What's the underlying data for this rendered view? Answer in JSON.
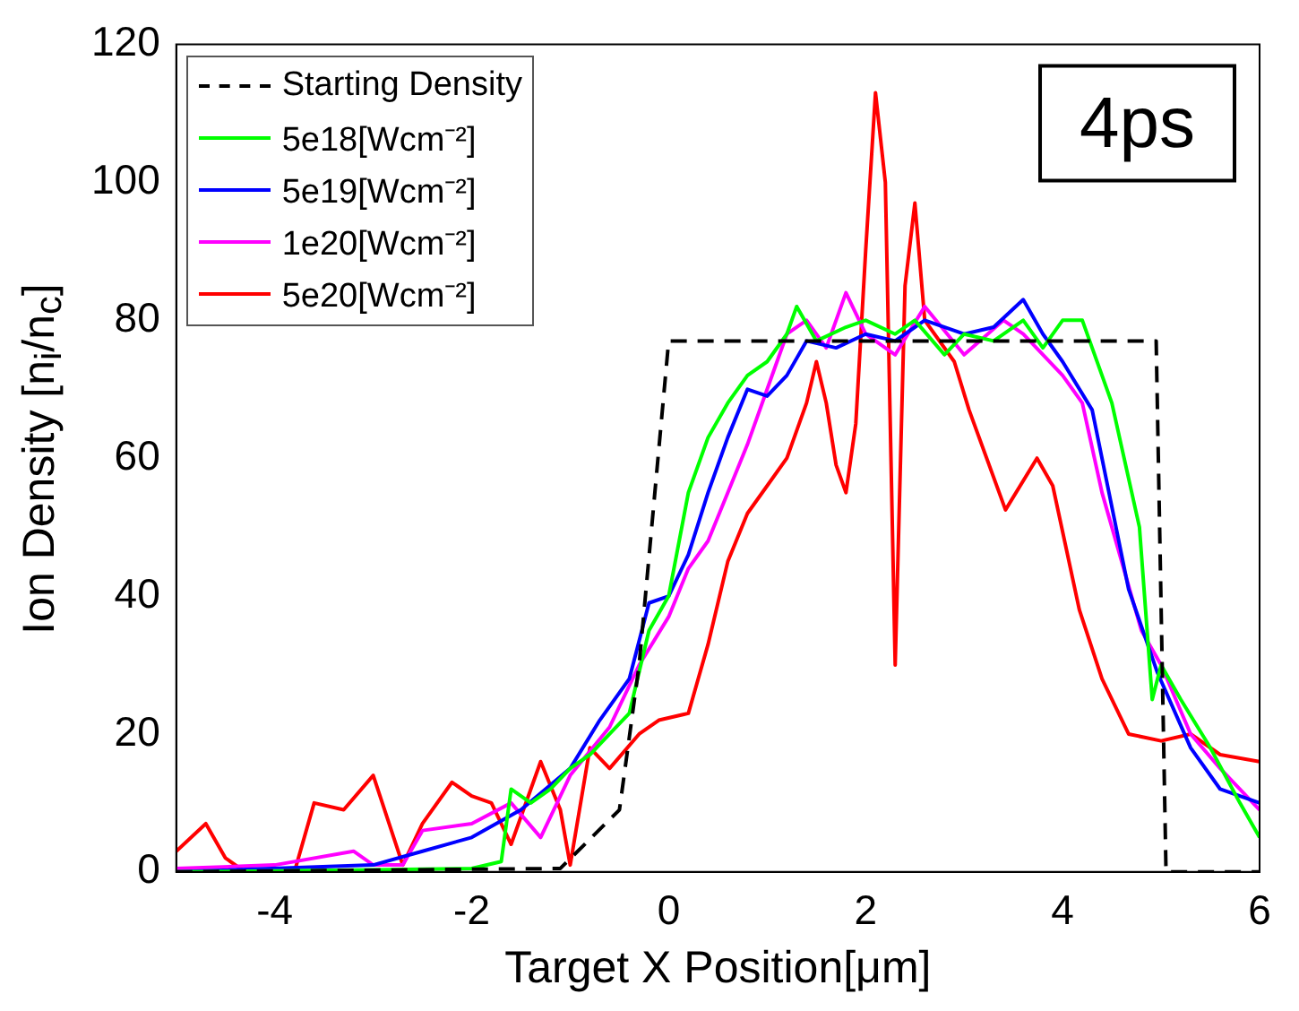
{
  "chart_data": {
    "type": "line",
    "xlabel": "Target X Position[μm]",
    "ylabel": "Ion Density [n$_{i}$/n$_{c}$]",
    "xlim": [
      -5,
      6
    ],
    "xticks": [
      -4,
      -2,
      0,
      2,
      4,
      6
    ],
    "ylim": [
      0,
      120
    ],
    "yticks": [
      0,
      20,
      40,
      60,
      80,
      100,
      120
    ],
    "legend": "top left",
    "marker": "none",
    "annotations": [
      "4ps"
    ],
    "series": [
      {
        "name": "Starting Density",
        "color": "#000000",
        "line_style": "dashed",
        "x": [
          -5,
          -1.1,
          -0.5,
          -0.3,
          0,
          4.95,
          5.05,
          6
        ],
        "values": [
          0,
          0.5,
          9,
          30,
          77,
          77,
          0,
          0
        ]
      },
      {
        "name": "5e18[Wcm⁻²]",
        "color": "#00ff00",
        "x": [
          -5,
          -3,
          -2,
          -1.7,
          -1.6,
          -1.4,
          -1.2,
          -1,
          -0.8,
          -0.6,
          -0.4,
          -0.2,
          0,
          0.2,
          0.4,
          0.6,
          0.8,
          1,
          1.2,
          1.3,
          1.5,
          1.8,
          2,
          2.3,
          2.5,
          2.8,
          3,
          3.3,
          3.6,
          3.8,
          4,
          4.2,
          4.3,
          4.5,
          4.78,
          4.91,
          5,
          5.2,
          5.5,
          5.8,
          6
        ],
        "values": [
          0,
          0.3,
          0.5,
          1.5,
          12,
          10,
          12,
          15,
          17,
          20,
          23,
          35,
          40,
          55,
          63,
          68,
          72,
          74,
          78,
          82,
          77,
          79,
          80,
          78,
          80,
          75,
          78,
          77,
          80,
          76,
          80,
          80,
          76,
          68,
          50,
          25,
          30,
          25,
          18,
          10,
          5
        ]
      },
      {
        "name": "5e19[Wcm⁻²]",
        "color": "#0000ff",
        "x": [
          -5,
          -3,
          -2.5,
          -2,
          -1.5,
          -1,
          -0.7,
          -0.4,
          -0.2,
          0,
          0.2,
          0.4,
          0.6,
          0.8,
          1,
          1.2,
          1.4,
          1.7,
          2,
          2.3,
          2.6,
          3,
          3.3,
          3.6,
          3.8,
          4,
          4.3,
          4.67,
          4.96,
          5.3,
          5.6,
          6
        ],
        "values": [
          0,
          1,
          3,
          5,
          9,
          15,
          22,
          28,
          39,
          40,
          46,
          55,
          63,
          70,
          69,
          72,
          77,
          76,
          78,
          77,
          80,
          78,
          79,
          83,
          78,
          74,
          67,
          41,
          29,
          18,
          12,
          10
        ]
      },
      {
        "name": "1e20[Wcm⁻²]",
        "color": "#ff00ff",
        "x": [
          -5,
          -4,
          -3.2,
          -3,
          -2.7,
          -2.5,
          -2,
          -1.6,
          -1.3,
          -1,
          -0.6,
          -0.3,
          0,
          0.2,
          0.4,
          0.6,
          0.8,
          1,
          1.2,
          1.4,
          1.6,
          1.8,
          2,
          2.3,
          2.6,
          3,
          3.4,
          3.6,
          4,
          4.2,
          4.4,
          4.6,
          4.8,
          5,
          5.3,
          5.6,
          6
        ],
        "values": [
          0.5,
          1,
          3,
          1,
          1,
          6,
          7,
          10,
          5,
          14,
          21,
          30,
          37,
          44,
          48,
          55,
          62,
          70,
          78,
          80,
          76,
          84,
          78,
          75,
          82,
          75,
          80,
          78,
          72,
          68,
          55,
          45,
          35,
          30,
          20,
          15,
          9
        ]
      },
      {
        "name": "5e20[Wcm⁻²]",
        "color": "#ff0000",
        "x": [
          -5,
          -4.7,
          -4.5,
          -4.3,
          -3.8,
          -3.6,
          -3.3,
          -3,
          -2.7,
          -2.5,
          -2.2,
          -2,
          -1.8,
          -1.6,
          -1.3,
          -1.1,
          -1,
          -0.8,
          -0.6,
          -0.3,
          -0.1,
          0.2,
          0.4,
          0.6,
          0.8,
          1,
          1.2,
          1.4,
          1.5,
          1.6,
          1.7,
          1.8,
          1.9,
          2,
          2.1,
          2.2,
          2.3,
          2.4,
          2.5,
          2.6,
          2.9,
          3.05,
          3.42,
          3.74,
          3.9,
          4.17,
          4.4,
          4.67,
          5,
          5.3,
          5.6,
          6
        ],
        "values": [
          3,
          7,
          2,
          0,
          0,
          10,
          9,
          14,
          1,
          7,
          13,
          11,
          10,
          4,
          16,
          9,
          1,
          18,
          15,
          20,
          22,
          23,
          33,
          45,
          52,
          56,
          60,
          68,
          74,
          68,
          59,
          55,
          65,
          90,
          113,
          100,
          30,
          85,
          97,
          80,
          74,
          67,
          52.5,
          60,
          56,
          38,
          28,
          20,
          19,
          20,
          17,
          16
        ]
      }
    ]
  }
}
